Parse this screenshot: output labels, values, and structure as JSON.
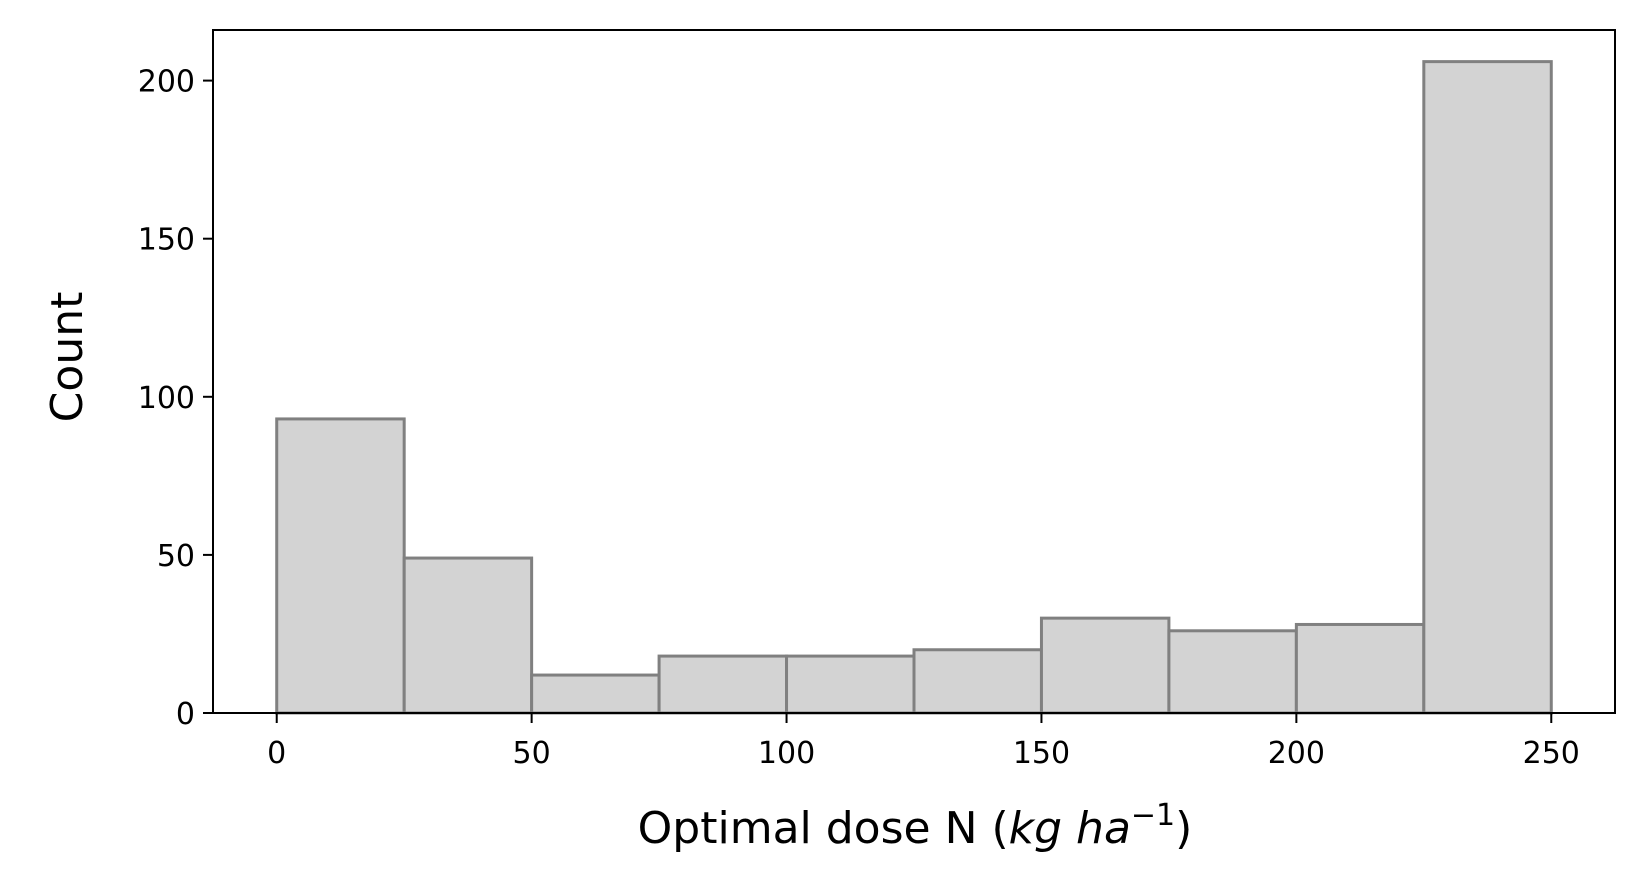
{
  "chart_data": {
    "type": "bar",
    "title": "",
    "xlabel": "Optimal dose N",
    "xlabel_unit": "kg ha",
    "xlabel_unit_exponent": "−1",
    "ylabel": "Count",
    "bin_edges": [
      0,
      25,
      50,
      75,
      100,
      125,
      150,
      175,
      200,
      225,
      250
    ],
    "values": [
      93,
      49,
      12,
      18,
      18,
      20,
      30,
      26,
      28,
      206
    ],
    "xlim": [
      -12.5,
      262.5
    ],
    "ylim": [
      0,
      216
    ],
    "xticks": [
      0,
      50,
      100,
      150,
      200,
      250
    ],
    "yticks": [
      0,
      50,
      100,
      150,
      200
    ],
    "grid": false,
    "legend": "none",
    "colors": {
      "bar_fill": "#d3d3d3",
      "bar_edge": "#808080"
    }
  }
}
